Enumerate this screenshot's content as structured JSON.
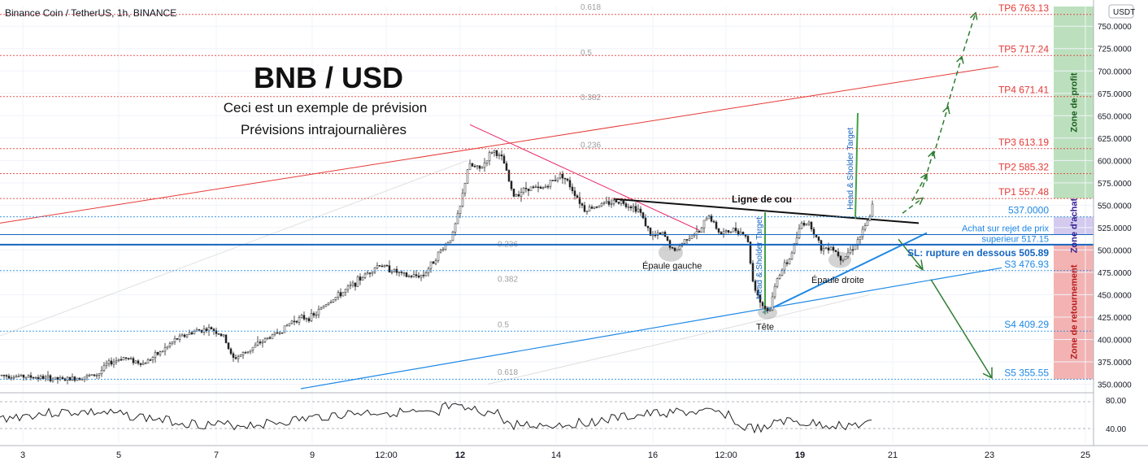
{
  "symbol_header": "Binance Coin / TetherUS, 1h, BINANCE",
  "currency_badge": "USDT",
  "title": "BNB / USD",
  "subtitle_line1": "Ceci est un exemple de prévision",
  "subtitle_line2": "Prévisions intrajournalières",
  "chart_data": {
    "type": "candlestick",
    "y_axis": {
      "ticks": [
        350,
        375,
        400,
        425,
        450,
        475,
        500,
        525,
        550,
        575,
        600,
        625,
        650,
        675,
        700,
        725,
        750
      ],
      "tick_labels": [
        "350.0000",
        "375.0000",
        "400.0000",
        "425.0000",
        "450.0000",
        "475.0000",
        "500.0000",
        "525.0000",
        "550.0000",
        "575.0000",
        "600.0000",
        "625.0000",
        "650.0000",
        "675.0000",
        "700.0000",
        "725.0000",
        "750.0000"
      ],
      "range": [
        345,
        772
      ]
    },
    "x_axis": {
      "ticks": [
        "3",
        "5",
        "7",
        "9",
        "12:00",
        "12",
        "14",
        "16",
        "12:00",
        "19",
        "21",
        "23",
        "25"
      ]
    },
    "price_path_approx": [
      [
        0,
        360
      ],
      [
        40,
        358
      ],
      [
        80,
        355
      ],
      [
        120,
        361
      ],
      [
        130,
        372
      ],
      [
        150,
        380
      ],
      [
        175,
        373
      ],
      [
        200,
        388
      ],
      [
        215,
        400
      ],
      [
        240,
        410
      ],
      [
        260,
        412
      ],
      [
        275,
        402
      ],
      [
        285,
        378
      ],
      [
        300,
        385
      ],
      [
        325,
        400
      ],
      [
        345,
        410
      ],
      [
        360,
        422
      ],
      [
        385,
        426
      ],
      [
        400,
        440
      ],
      [
        420,
        452
      ],
      [
        445,
        470
      ],
      [
        465,
        484
      ],
      [
        480,
        478
      ],
      [
        500,
        470
      ],
      [
        520,
        472
      ],
      [
        540,
        498
      ],
      [
        555,
        515
      ],
      [
        565,
        548
      ],
      [
        575,
        595
      ],
      [
        590,
        590
      ],
      [
        605,
        612
      ],
      [
        618,
        600
      ],
      [
        630,
        560
      ],
      [
        648,
        570
      ],
      [
        665,
        568
      ],
      [
        690,
        585
      ],
      [
        705,
        565
      ],
      [
        718,
        545
      ],
      [
        735,
        550
      ],
      [
        760,
        555
      ],
      [
        785,
        545
      ],
      [
        800,
        515
      ],
      [
        815,
        518
      ],
      [
        828,
        497
      ],
      [
        845,
        515
      ],
      [
        860,
        520
      ],
      [
        870,
        540
      ],
      [
        885,
        518
      ],
      [
        905,
        523
      ],
      [
        918,
        515
      ],
      [
        925,
        465
      ],
      [
        935,
        440
      ],
      [
        945,
        430
      ],
      [
        955,
        470
      ],
      [
        970,
        490
      ],
      [
        985,
        530
      ],
      [
        995,
        530
      ],
      [
        1010,
        500
      ],
      [
        1020,
        505
      ],
      [
        1035,
        490
      ],
      [
        1050,
        505
      ],
      [
        1060,
        520
      ],
      [
        1068,
        535
      ],
      [
        1075,
        560
      ]
    ],
    "levels": [
      {
        "name": "TP6",
        "label": "TP6 763.13",
        "value": 763.13,
        "color": "#e53935"
      },
      {
        "name": "TP5",
        "label": "TP5 717.24",
        "value": 717.24,
        "color": "#e53935"
      },
      {
        "name": "TP4",
        "label": "TP4 671.41",
        "value": 671.41,
        "color": "#e53935"
      },
      {
        "name": "TP3",
        "label": "TP3 613.19",
        "value": 613.19,
        "color": "#e53935"
      },
      {
        "name": "TP2",
        "label": "TP2 585.32",
        "value": 585.32,
        "color": "#e53935"
      },
      {
        "name": "TP1",
        "label": "TP1 557.48",
        "value": 557.48,
        "color": "#e53935"
      },
      {
        "name": "537",
        "label": "537.0000",
        "value": 537.0,
        "color": "#1e88e5"
      },
      {
        "name": "S3",
        "label": "S3 476.93",
        "value": 476.93,
        "color": "#1e88e5"
      },
      {
        "name": "S4",
        "label": "S4 409.29",
        "value": 409.29,
        "color": "#1e88e5"
      },
      {
        "name": "S5",
        "label": "S5 355.55",
        "value": 355.55,
        "color": "#1e88e5"
      }
    ],
    "entry_level": {
      "label": "Achat sur rejet de prix",
      "label2": "superieur 517.15",
      "value": 517.15
    },
    "stop_level": {
      "label": "SL: rupture en dessous 505.89",
      "value": 505.89
    },
    "fib_labels": [
      {
        "label": "0.618",
        "value": 772
      },
      {
        "label": "0.5",
        "value": 721
      },
      {
        "label": "0.382",
        "value": 671
      },
      {
        "label": "0.236",
        "value": 618
      },
      {
        "label": "0.236",
        "value": 507
      },
      {
        "label": "0.382",
        "value": 468
      },
      {
        "label": "0.5",
        "value": 417
      },
      {
        "label": "0.618",
        "value": 364
      }
    ],
    "annotations": {
      "neckline": "Ligne de cou",
      "left_shoulder": "Épaule gauche",
      "head": "Tête",
      "right_shoulder": "Épaule droite",
      "hs_target": "Head & Sholder Target"
    },
    "zones": [
      {
        "label": "Zone de profit",
        "from": 557.48,
        "to": 772,
        "color": "#a5d6a7"
      },
      {
        "label": "Zone d'achat",
        "from": 517.15,
        "to": 537.0,
        "color": "#c5b8e8"
      },
      {
        "label": "Zone de retournement",
        "from": 355.55,
        "to": 505.89,
        "color": "#ef9a9a"
      }
    ],
    "rsi": {
      "ticks": [
        80,
        40
      ],
      "tick_labels": [
        "80.00",
        "40.00"
      ]
    },
    "colors": {
      "up": "#26a69a",
      "down": "#ef5350",
      "candles": "#111111",
      "arrows": "#2e7d32"
    }
  }
}
